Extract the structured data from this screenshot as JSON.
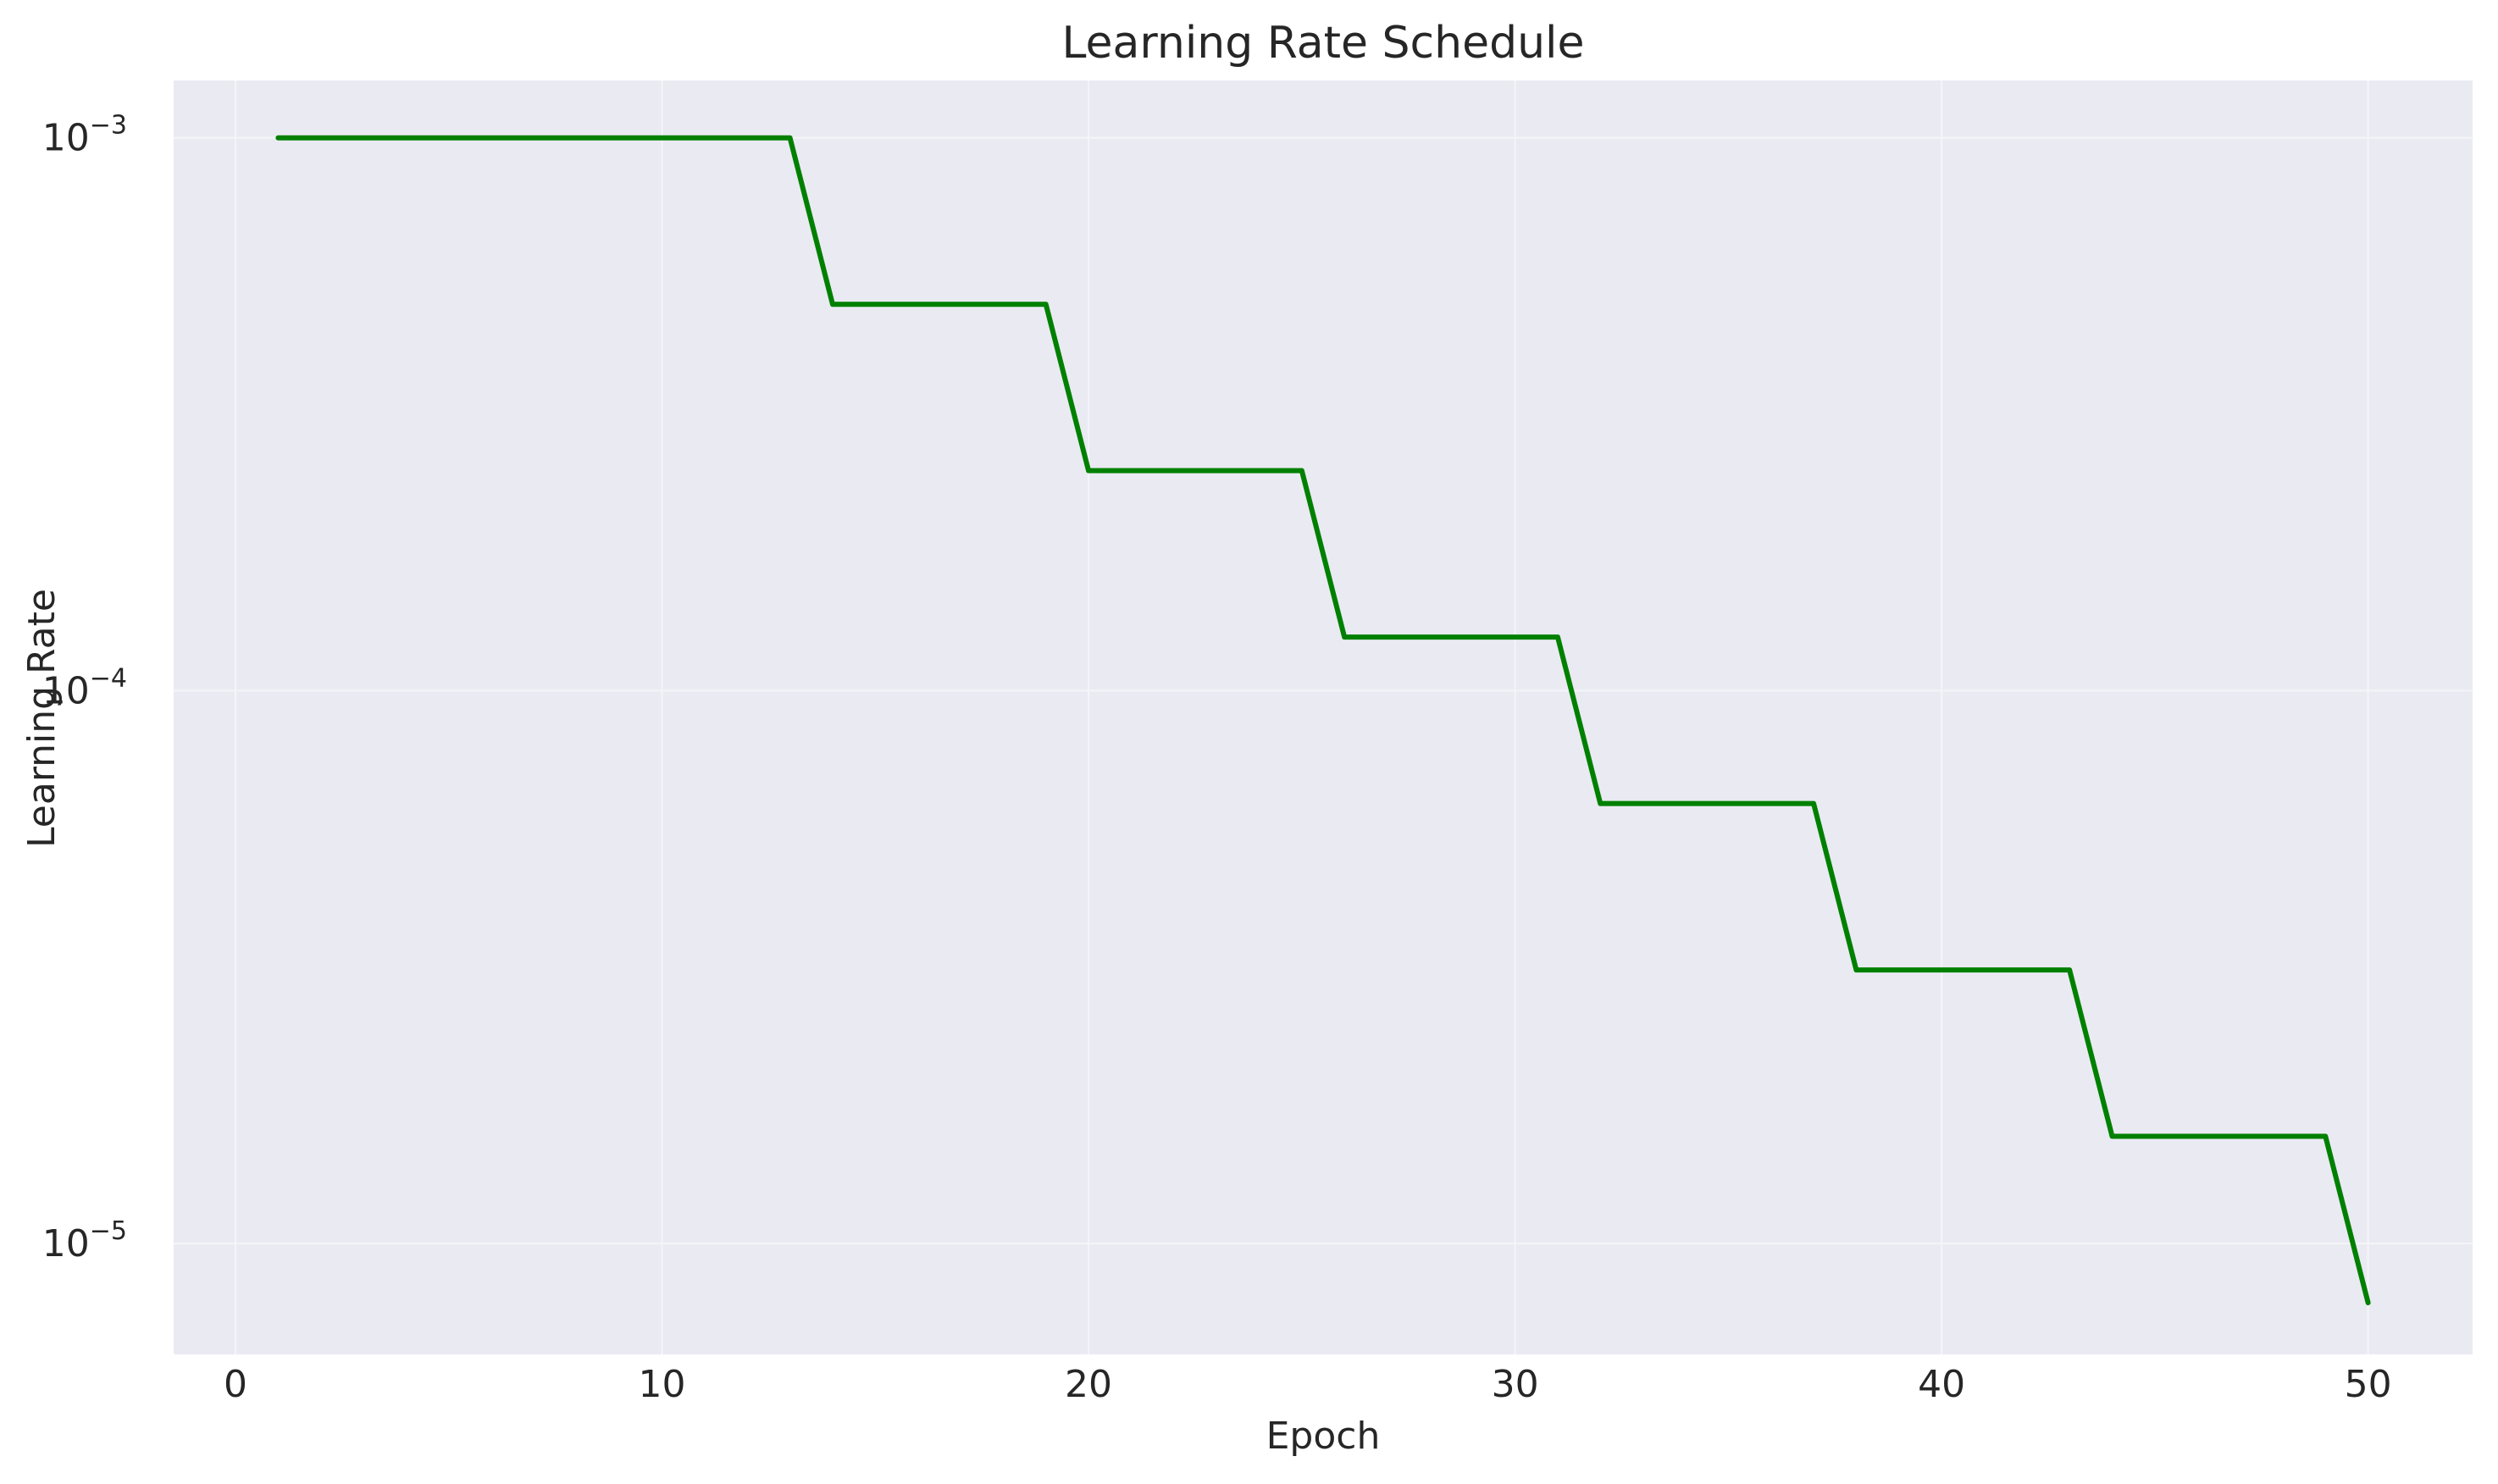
{
  "chart_data": {
    "type": "line",
    "title": "Learning Rate Schedule",
    "xlabel": "Epoch",
    "ylabel": "Learning Rate",
    "xlim": [
      -1.45,
      52.45
    ],
    "ylim": [
      6.3e-06,
      0.00127
    ],
    "yscale": "log",
    "grid": true,
    "x_ticks": [
      0,
      10,
      20,
      30,
      40,
      50
    ],
    "y_ticks": [
      {
        "value": 0.001,
        "base": "10",
        "exp": "−3"
      },
      {
        "value": 0.0001,
        "base": "10",
        "exp": "−4"
      },
      {
        "value": 1e-05,
        "base": "10",
        "exp": "−5"
      }
    ],
    "series": [
      {
        "color": "#008000",
        "x": [
          1,
          2,
          3,
          4,
          5,
          6,
          7,
          8,
          9,
          10,
          11,
          12,
          13,
          14,
          15,
          16,
          17,
          18,
          19,
          20,
          21,
          22,
          23,
          24,
          25,
          26,
          27,
          28,
          29,
          30,
          31,
          32,
          33,
          34,
          35,
          36,
          37,
          38,
          39,
          40,
          41,
          42,
          43,
          44,
          45,
          46,
          47,
          48,
          49,
          50
        ],
        "y": [
          0.001,
          0.001,
          0.001,
          0.001,
          0.001,
          0.001,
          0.001,
          0.001,
          0.001,
          0.001,
          0.001,
          0.001,
          0.001,
          0.0005,
          0.0005,
          0.0005,
          0.0005,
          0.0005,
          0.0005,
          0.00025,
          0.00025,
          0.00025,
          0.00025,
          0.00025,
          0.00025,
          0.000125,
          0.000125,
          0.000125,
          0.000125,
          0.000125,
          0.000125,
          6.25e-05,
          6.25e-05,
          6.25e-05,
          6.25e-05,
          6.25e-05,
          6.25e-05,
          3.125e-05,
          3.125e-05,
          3.125e-05,
          3.125e-05,
          3.125e-05,
          3.125e-05,
          1.5625e-05,
          1.5625e-05,
          1.5625e-05,
          1.5625e-05,
          1.5625e-05,
          1.5625e-05,
          7.8125e-06
        ]
      }
    ]
  },
  "colors": {
    "plot_background": "#EAEAF2",
    "grid": "#F5F5F8",
    "text": "#262626",
    "line": "#008000"
  }
}
